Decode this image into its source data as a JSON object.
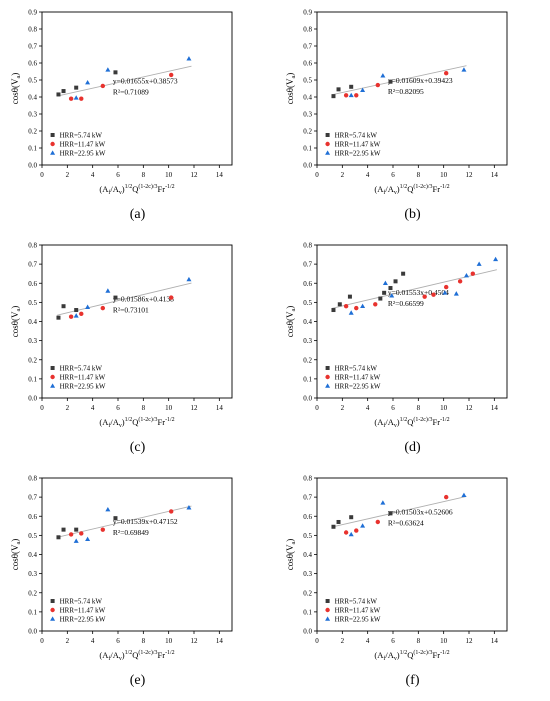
{
  "legend_labels": [
    "HRR=5.74 kW",
    "HRR=11.47 kW",
    "HRR=22.95 kW"
  ],
  "colors": {
    "s1": "#3a3a3a",
    "s2": "#e8322e",
    "s3": "#1f6fd6",
    "fit": "#b0b0b0"
  },
  "axis": {
    "xticks": [
      "0",
      "2",
      "4",
      "6",
      "8",
      "10",
      "12",
      "14"
    ],
    "yticks": [
      "0.0",
      "0.1",
      "0.2",
      "0.3",
      "0.4",
      "0.5",
      "0.6",
      "0.7",
      "0.8",
      "0.9"
    ]
  },
  "chart_data": [
    {
      "type": "scatter",
      "label": "(a)",
      "xlabel": "(A_f/A_v)^1/2 Q^(1-2c)/3 Fr^-1/2",
      "ylabel": "cosθ(V_a)",
      "xlim": [
        0,
        15
      ],
      "ylim": [
        0,
        0.9
      ],
      "equation": "y=0.01655x+0.38573",
      "r2": "R²=0.71089",
      "fit": {
        "slope": 0.01655,
        "intercept": 0.38573,
        "x_range": [
          1.2,
          11.8
        ]
      },
      "series": [
        {
          "name": "HRR=5.74 kW",
          "x": [
            1.3,
            1.7,
            2.7,
            5.8
          ],
          "y": [
            0.415,
            0.435,
            0.455,
            0.545
          ]
        },
        {
          "name": "HRR=11.47 kW",
          "x": [
            2.3,
            3.1,
            4.8,
            10.2
          ],
          "y": [
            0.39,
            0.39,
            0.465,
            0.53
          ]
        },
        {
          "name": "HRR=22.95 kW",
          "x": [
            2.7,
            3.6,
            5.2,
            11.6
          ],
          "y": [
            0.395,
            0.485,
            0.56,
            0.625
          ]
        }
      ]
    },
    {
      "type": "scatter",
      "label": "(b)",
      "xlabel": "(A_f/A_v)^1/2 Q^(1-2c)/3 Fr^-1/2",
      "ylabel": "cosθ(V_a)",
      "xlim": [
        0,
        15
      ],
      "ylim": [
        0,
        0.9
      ],
      "equation": "y=0.01609x+0.39423",
      "r2": "R²=0.82095",
      "fit": {
        "slope": 0.01609,
        "intercept": 0.39423,
        "x_range": [
          1.2,
          11.8
        ]
      },
      "series": [
        {
          "name": "HRR=5.74 kW",
          "x": [
            1.3,
            1.7,
            2.7,
            5.8
          ],
          "y": [
            0.405,
            0.445,
            0.46,
            0.49
          ]
        },
        {
          "name": "HRR=11.47 kW",
          "x": [
            2.3,
            3.1,
            4.8,
            10.2
          ],
          "y": [
            0.41,
            0.41,
            0.47,
            0.54
          ]
        },
        {
          "name": "HRR=22.95 kW",
          "x": [
            2.7,
            3.6,
            5.2,
            11.6
          ],
          "y": [
            0.41,
            0.44,
            0.525,
            0.56
          ]
        }
      ]
    },
    {
      "type": "scatter",
      "label": "(c)",
      "xlabel": "(A_f/A_v)^1/2 Q^(1-2c)/3 Fr^-1/2",
      "ylabel": "cosθ(V_a)",
      "xlim": [
        0,
        15
      ],
      "ylim": [
        0,
        0.8
      ],
      "equation": "y=0.01586x+0.4138",
      "r2": "R²=0.73101",
      "fit": {
        "slope": 0.01586,
        "intercept": 0.4138,
        "x_range": [
          1.2,
          11.8
        ]
      },
      "series": [
        {
          "name": "HRR=5.74 kW",
          "x": [
            1.3,
            1.7,
            2.7,
            5.8
          ],
          "y": [
            0.42,
            0.48,
            0.46,
            0.525
          ]
        },
        {
          "name": "HRR=11.47 kW",
          "x": [
            2.3,
            3.1,
            4.8,
            10.2
          ],
          "y": [
            0.425,
            0.44,
            0.47,
            0.525
          ]
        },
        {
          "name": "HRR=22.95 kW",
          "x": [
            2.7,
            3.6,
            5.2,
            11.6
          ],
          "y": [
            0.43,
            0.475,
            0.56,
            0.62
          ]
        }
      ]
    },
    {
      "type": "scatter",
      "label": "(d)",
      "xlabel": "(A_f/A_v)^1/2 Q^(1-2c)/3 Fr^-1/2",
      "ylabel": "cosθ(V_a)",
      "xlim": [
        0,
        15
      ],
      "ylim": [
        0,
        0.8
      ],
      "equation": "y=0.01553x+0.4504",
      "r2": "R²=0.66599",
      "fit": {
        "slope": 0.01553,
        "intercept": 0.4504,
        "x_range": [
          1.2,
          14.2
        ]
      },
      "series": [
        {
          "name": "HRR=5.74 kW",
          "x": [
            1.3,
            1.8,
            2.6,
            5.0,
            5.3,
            5.8,
            6.2,
            6.8
          ],
          "y": [
            0.46,
            0.49,
            0.53,
            0.52,
            0.55,
            0.575,
            0.61,
            0.65
          ]
        },
        {
          "name": "HRR=11.47 kW",
          "x": [
            2.3,
            3.1,
            4.6,
            8.5,
            9.2,
            10.2,
            11.3,
            12.3
          ],
          "y": [
            0.48,
            0.47,
            0.49,
            0.53,
            0.54,
            0.58,
            0.61,
            0.65
          ]
        },
        {
          "name": "HRR=22.95 kW",
          "x": [
            2.7,
            3.6,
            5.4,
            5.9,
            10.1,
            11.0,
            11.8,
            12.8,
            14.1
          ],
          "y": [
            0.445,
            0.48,
            0.6,
            0.535,
            0.55,
            0.545,
            0.64,
            0.7,
            0.725
          ]
        }
      ]
    },
    {
      "type": "scatter",
      "label": "(e)",
      "xlabel": "(A_f/A_v)^1/2 Q^(1-2c)/3 Fr^-1/2",
      "ylabel": "cosθ(V_a)",
      "xlim": [
        0,
        15
      ],
      "ylim": [
        0,
        0.8
      ],
      "equation": "y=0.01539x+0.47152",
      "r2": "R²=0.69849",
      "fit": {
        "slope": 0.01539,
        "intercept": 0.47152,
        "x_range": [
          1.2,
          11.8
        ]
      },
      "series": [
        {
          "name": "HRR=5.74 kW",
          "x": [
            1.3,
            1.7,
            2.7,
            5.8
          ],
          "y": [
            0.49,
            0.53,
            0.53,
            0.59
          ]
        },
        {
          "name": "HRR=11.47 kW",
          "x": [
            2.3,
            3.1,
            4.8,
            10.2
          ],
          "y": [
            0.505,
            0.51,
            0.53,
            0.625
          ]
        },
        {
          "name": "HRR=22.95 kW",
          "x": [
            2.7,
            3.6,
            5.2,
            11.6
          ],
          "y": [
            0.47,
            0.48,
            0.635,
            0.645
          ]
        }
      ]
    },
    {
      "type": "scatter",
      "label": "(f)",
      "xlabel": "(A_f/A_v)^1/2 Q^(1-2c)/3 Fr^-1/2",
      "ylabel": "cosθ(V_a)",
      "xlim": [
        0,
        15
      ],
      "ylim": [
        0,
        0.8
      ],
      "equation": "y=0.01503x+0.52606",
      "r2": "R²=0.63624",
      "fit": {
        "slope": 0.01503,
        "intercept": 0.52606,
        "x_range": [
          1.2,
          11.8
        ]
      },
      "series": [
        {
          "name": "HRR=5.74 kW",
          "x": [
            1.3,
            1.7,
            2.7,
            5.8
          ],
          "y": [
            0.545,
            0.57,
            0.595,
            0.615
          ]
        },
        {
          "name": "HRR=11.47 kW",
          "x": [
            2.3,
            3.1,
            4.8,
            10.2
          ],
          "y": [
            0.515,
            0.525,
            0.57,
            0.7
          ]
        },
        {
          "name": "HRR=22.95 kW",
          "x": [
            2.7,
            3.6,
            5.2,
            11.6
          ],
          "y": [
            0.505,
            0.55,
            0.67,
            0.71
          ]
        }
      ]
    }
  ]
}
